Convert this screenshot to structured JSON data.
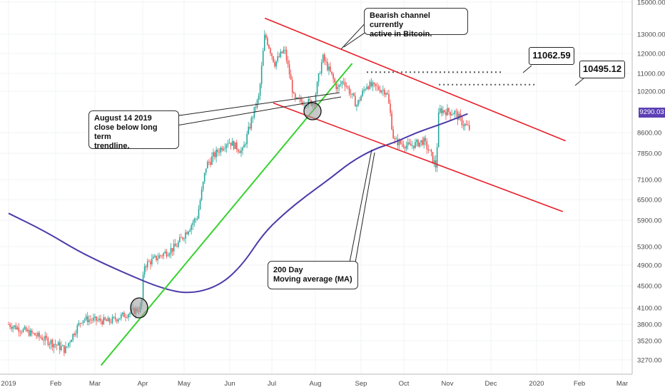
{
  "chart_data": {
    "type": "candlestick",
    "instrument": "Bitcoin",
    "x_labels": [
      "2019",
      "Feb",
      "Mar",
      "Apr",
      "May",
      "Jun",
      "Jul",
      "Aug",
      "Sep",
      "Oct",
      "Nov",
      "Dec",
      "2020",
      "Feb",
      "Mar"
    ],
    "y_ticks": [
      3270,
      3520,
      3800,
      4100,
      4500,
      4900,
      5300,
      5900,
      6500,
      7100,
      7850,
      8600,
      9290.03,
      10200,
      11000,
      12000,
      13000,
      15000
    ],
    "y_tick_labels": [
      "3270.00",
      "3520.00",
      "3800.00",
      "4100.00",
      "4500.00",
      "4900.00",
      "5300.00",
      "5900.00",
      "6500.00",
      "7100.00",
      "7850.00",
      "8600.00",
      "9290.03",
      "10200.00",
      "11000.00",
      "12000.00",
      "13000.00",
      "15000.00"
    ],
    "last_price": "9290.03",
    "price_anchors": [
      {
        "x": "2019-01-01",
        "y": 3800
      },
      {
        "x": "2019-01-20",
        "y": 3600
      },
      {
        "x": "2019-02-08",
        "y": 3400
      },
      {
        "x": "2019-02-20",
        "y": 3900
      },
      {
        "x": "2019-03-10",
        "y": 3850
      },
      {
        "x": "2019-03-31",
        "y": 4100
      },
      {
        "x": "2019-04-02",
        "y": 4900
      },
      {
        "x": "2019-04-25",
        "y": 5300
      },
      {
        "x": "2019-05-10",
        "y": 6000
      },
      {
        "x": "2019-05-16",
        "y": 7500
      },
      {
        "x": "2019-05-31",
        "y": 8300
      },
      {
        "x": "2019-06-10",
        "y": 7900
      },
      {
        "x": "2019-06-22",
        "y": 10000
      },
      {
        "x": "2019-06-26",
        "y": 13000
      },
      {
        "x": "2019-07-03",
        "y": 11500
      },
      {
        "x": "2019-07-10",
        "y": 12200
      },
      {
        "x": "2019-07-17",
        "y": 9800
      },
      {
        "x": "2019-07-31",
        "y": 9700
      },
      {
        "x": "2019-08-06",
        "y": 11800
      },
      {
        "x": "2019-08-16",
        "y": 10300
      },
      {
        "x": "2019-08-20",
        "y": 10700
      },
      {
        "x": "2019-08-29",
        "y": 9600
      },
      {
        "x": "2019-09-05",
        "y": 10500
      },
      {
        "x": "2019-09-19",
        "y": 10200
      },
      {
        "x": "2019-09-24",
        "y": 8300
      },
      {
        "x": "2019-10-05",
        "y": 8100
      },
      {
        "x": "2019-10-15",
        "y": 8300
      },
      {
        "x": "2019-10-24",
        "y": 7450
      },
      {
        "x": "2019-10-26",
        "y": 9400
      },
      {
        "x": "2019-11-06",
        "y": 9300
      },
      {
        "x": "2019-11-12",
        "y": 8900
      },
      {
        "x": "2019-11-17",
        "y": 8700
      }
    ],
    "moving_average_200": [
      {
        "x": "2019-01-01",
        "y": 6100
      },
      {
        "x": "2019-01-25",
        "y": 5650
      },
      {
        "x": "2019-02-20",
        "y": 5150
      },
      {
        "x": "2019-03-20",
        "y": 4750
      },
      {
        "x": "2019-04-15",
        "y": 4450
      },
      {
        "x": "2019-05-05",
        "y": 4350
      },
      {
        "x": "2019-05-25",
        "y": 4500
      },
      {
        "x": "2019-06-10",
        "y": 4900
      },
      {
        "x": "2019-06-25",
        "y": 5600
      },
      {
        "x": "2019-07-10",
        "y": 6100
      },
      {
        "x": "2019-07-25",
        "y": 6600
      },
      {
        "x": "2019-08-10",
        "y": 7100
      },
      {
        "x": "2019-08-25",
        "y": 7600
      },
      {
        "x": "2019-09-10",
        "y": 8000
      },
      {
        "x": "2019-09-25",
        "y": 8250
      },
      {
        "x": "2019-10-10",
        "y": 8600
      },
      {
        "x": "2019-10-25",
        "y": 8850
      },
      {
        "x": "2019-11-05",
        "y": 9050
      },
      {
        "x": "2019-11-15",
        "y": 9250
      }
    ],
    "channel_upper": [
      {
        "x": "2019-06-26",
        "y": 14000
      },
      {
        "x": "2020-01-22",
        "y": 8300
      }
    ],
    "channel_lower": [
      {
        "x": "2019-07-02",
        "y": 9700
      },
      {
        "x": "2020-01-20",
        "y": 6150
      }
    ],
    "trendline": [
      {
        "x": "2019-03-05",
        "y": 3200
      },
      {
        "x": "2019-08-26",
        "y": 11500
      }
    ],
    "levels": [
      {
        "value": "11062.59",
        "y": 11062.59,
        "from": "2019-09-05",
        "to": "2019-12-08"
      },
      {
        "value": "10495.12",
        "y": 10495.12,
        "from": "2019-10-26",
        "to": "2019-12-31"
      }
    ],
    "colors": {
      "up": "#26a69a",
      "down": "#ef5350",
      "ma": "#4b3aa8",
      "channel": "#e8202a",
      "trendline": "#36d22e"
    }
  },
  "annotations": {
    "channel": "Bearish channel currently\nactive in Bitcoin.",
    "trend": "August 14 2019\nclose below long term\ntrendline.",
    "ma": "200 Day\nMoving average (MA)"
  }
}
